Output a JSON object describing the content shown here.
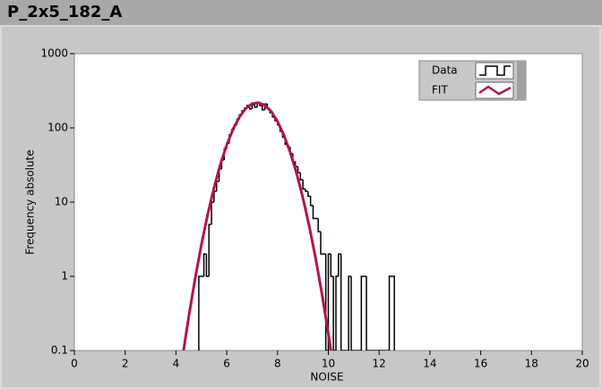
{
  "chart_data": {
    "type": "histogram",
    "title": "P_2x5_182_A",
    "x_label": "NOISE",
    "y_label": "Frequency absolute",
    "yscale": "log",
    "xlim": [
      0,
      20
    ],
    "xticks": [
      0,
      2,
      4,
      6,
      8,
      10,
      12,
      14,
      16,
      18,
      20
    ],
    "ylim": [
      0.1,
      1000
    ],
    "yticks": [
      0.1,
      1,
      10,
      100,
      1000
    ],
    "legend_position": "upper right",
    "series": [
      {
        "name": "Data",
        "color": "#000000",
        "bins": [
          4.9,
          5.0,
          5.1,
          5.2,
          5.3,
          5.4,
          5.5,
          5.6,
          5.7,
          5.8,
          5.9,
          6.0,
          6.1,
          6.2,
          6.3,
          6.4,
          6.5,
          6.6,
          6.7,
          6.8,
          6.9,
          7.0,
          7.1,
          7.2,
          7.3,
          7.4,
          7.5,
          7.6,
          7.7,
          7.8,
          7.9,
          8.0,
          8.1,
          8.2,
          8.3,
          8.4,
          8.5,
          8.6,
          8.7,
          8.8,
          8.9,
          9.0,
          9.1,
          9.2,
          9.3,
          9.4,
          9.5,
          9.6,
          9.7,
          9.8,
          9.9,
          10.0,
          10.1,
          10.2,
          10.3,
          10.4,
          10.5,
          10.6,
          10.7,
          10.8,
          10.9,
          11.0,
          11.1,
          11.2,
          11.3,
          11.4,
          11.5,
          11.6,
          11.7,
          11.8,
          11.9,
          12.0,
          12.1,
          12.2,
          12.3,
          12.4,
          12.5,
          12.6
        ],
        "values": [
          1,
          1,
          2,
          1,
          5,
          10,
          14,
          19,
          28,
          37,
          52,
          62,
          80,
          95,
          110,
          130,
          150,
          170,
          185,
          200,
          180,
          205,
          190,
          215,
          200,
          175,
          210,
          180,
          160,
          140,
          125,
          110,
          90,
          75,
          60,
          55,
          45,
          35,
          30,
          25,
          20,
          15,
          14,
          12,
          9,
          6,
          6,
          4,
          2,
          2,
          0,
          2,
          1,
          0,
          1,
          2,
          0,
          0,
          0,
          1,
          0,
          0,
          0,
          0,
          1,
          1,
          0,
          0,
          0,
          0,
          0,
          0,
          0,
          0,
          0,
          1,
          1
        ]
      },
      {
        "name": "FIT",
        "color": "#b0154f",
        "x": [
          4.3,
          4.5,
          4.75,
          5.0,
          5.25,
          5.5,
          5.75,
          6.0,
          6.25,
          6.5,
          6.75,
          7.0,
          7.25,
          7.5,
          7.75,
          8.0,
          8.25,
          8.5,
          8.75,
          9.0,
          9.25,
          9.5,
          9.75,
          10.0,
          10.1
        ],
        "values": [
          0.1,
          0.28,
          0.91,
          2.64,
          6.8,
          15.7,
          32.2,
          58.9,
          96.4,
          140,
          183,
          212,
          219,
          202,
          167,
          122,
          80,
          46.9,
          24.4,
          11.4,
          4.72,
          1.75,
          0.58,
          0.17,
          0.1
        ]
      }
    ]
  }
}
